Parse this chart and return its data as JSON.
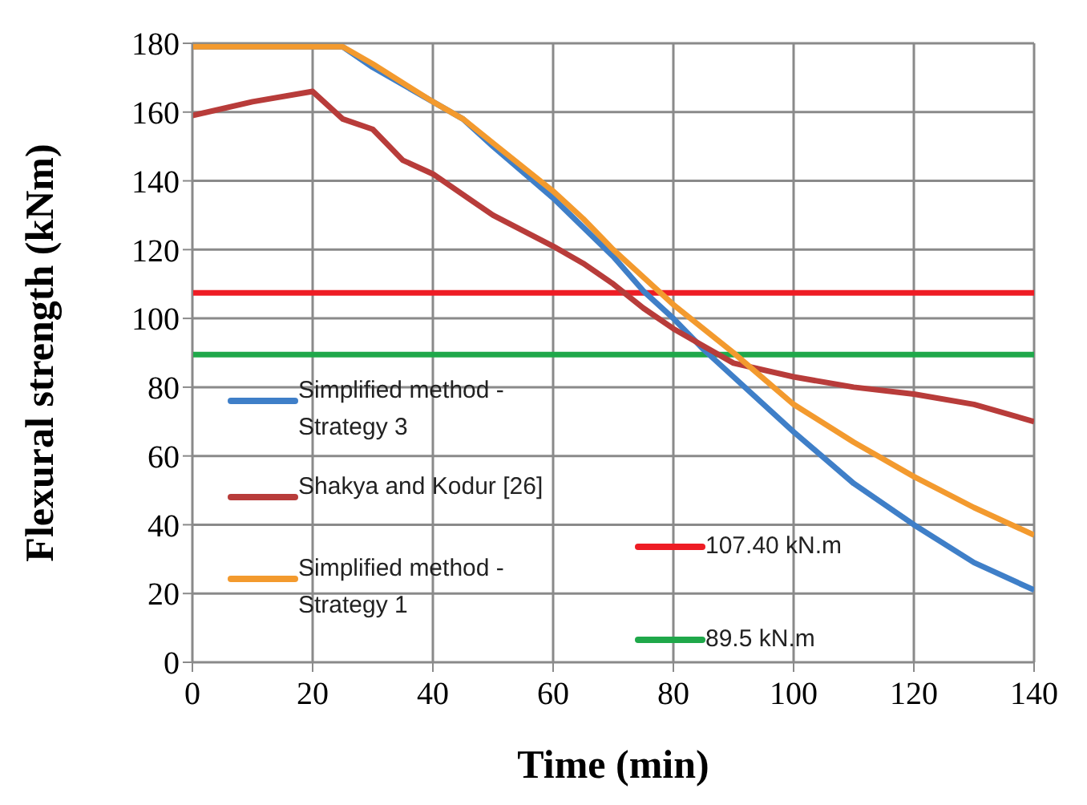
{
  "chart_data": {
    "type": "line",
    "xlabel": "Time (min)",
    "ylabel": "Flexural strength (kNm)",
    "xlim": [
      0,
      140
    ],
    "xticks": [
      0,
      20,
      40,
      60,
      80,
      100,
      120,
      140
    ],
    "ylim": [
      0,
      180
    ],
    "yticks": [
      0,
      20,
      40,
      60,
      80,
      100,
      120,
      140,
      160,
      180
    ],
    "grid": true,
    "legend": "bottom left",
    "marker": "none",
    "line_style": "solid",
    "series": [
      {
        "name": "Simplified method - Strategy 3",
        "color": "#3f7fc8",
        "x": [
          0,
          25,
          30,
          40,
          45,
          50,
          60,
          70,
          75,
          80,
          85,
          90,
          100,
          110,
          120,
          130,
          140
        ],
        "values": [
          179,
          179,
          173,
          163,
          158,
          150,
          135,
          118,
          108,
          100,
          91,
          83,
          67,
          52,
          40,
          29,
          21
        ]
      },
      {
        "name": "Shakya and Kodur [26]",
        "color": "#b83c3a",
        "x": [
          0,
          10,
          20,
          25,
          30,
          35,
          40,
          50,
          60,
          65,
          70,
          75,
          80,
          85,
          90,
          100,
          110,
          120,
          130,
          140
        ],
        "values": [
          159,
          163,
          166,
          158,
          155,
          146,
          142,
          130,
          121,
          116,
          110,
          103,
          97,
          92,
          87,
          83,
          80,
          78,
          75,
          70
        ]
      },
      {
        "name": "Simplified method - Strategy 1",
        "color": "#f39a2e",
        "x": [
          0,
          25,
          30,
          40,
          45,
          50,
          60,
          65,
          70,
          80,
          90,
          100,
          110,
          120,
          130,
          140
        ],
        "values": [
          179,
          179,
          174,
          163,
          158,
          151,
          137,
          129,
          120,
          104,
          90,
          75,
          64,
          54,
          45,
          37
        ]
      }
    ],
    "ref_lines": [
      {
        "axis": "y",
        "value": 107.4,
        "label": "107.40 kN.m",
        "color": "#ee1c24"
      },
      {
        "axis": "y",
        "value": 89.5,
        "label": "89.5 kN.m",
        "color": "#1fa84a"
      }
    ]
  }
}
